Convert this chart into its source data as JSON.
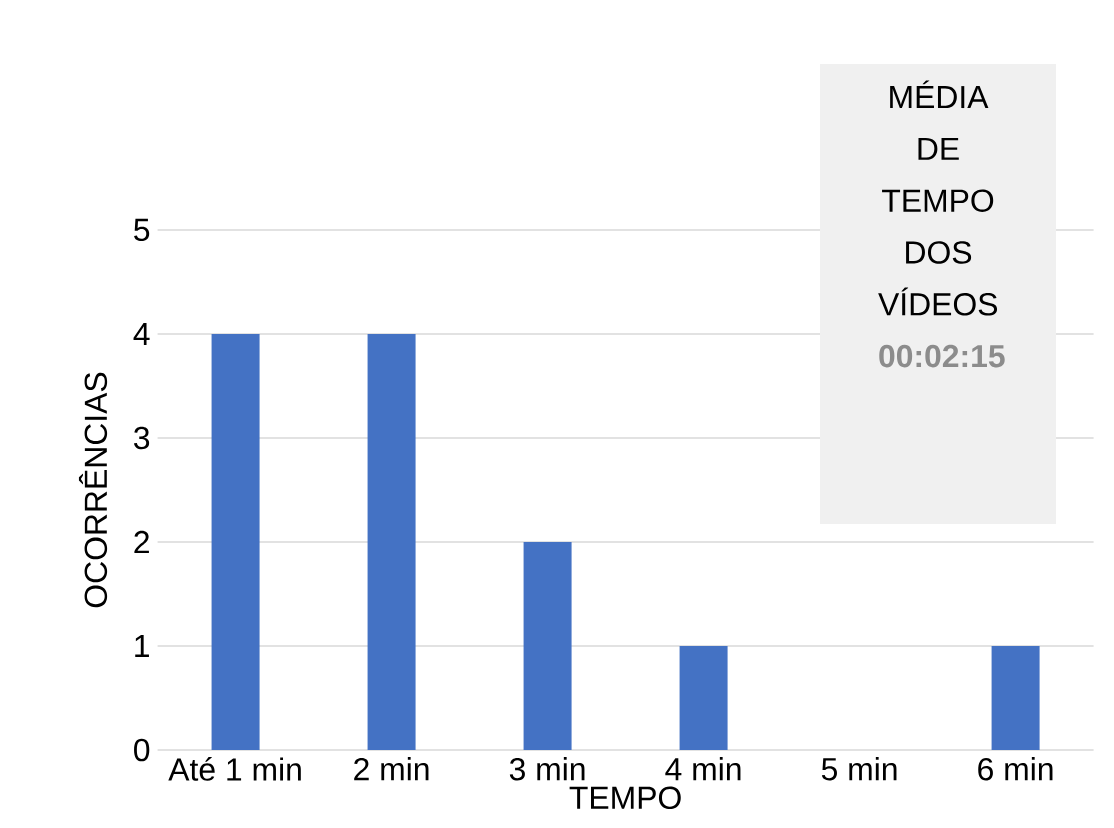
{
  "chart_data": {
    "type": "bar",
    "xlabel": "TEMPO",
    "ylabel": "OCORRÊNCIAS",
    "categories": [
      "Até 1 min",
      "2 min",
      "3 min",
      "4 min",
      "5 min",
      "6 min"
    ],
    "values": [
      4,
      4,
      2,
      1,
      0,
      1
    ],
    "color": "#4472c4",
    "ylim": [
      0,
      5
    ],
    "yticks": [
      0,
      1,
      2,
      3,
      4,
      5
    ],
    "grid": "y",
    "annotations": [
      "MÉDIA DE TEMPO DOS VÍDEOS",
      "**00:02:15**"
    ]
  }
}
